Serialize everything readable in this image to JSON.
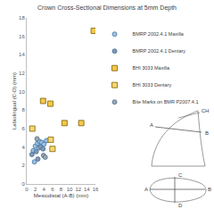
{
  "chart_data": {
    "type": "scatter",
    "title": "Crown Cross-Sectional Dimensions at 5mm Depth",
    "x_label": "Mesiodistal (A-B) (mm)",
    "y_label": "Labiolingual (C-D) (mm)",
    "xlim": [
      0,
      16
    ],
    "xticks": [
      0,
      2,
      4,
      6,
      8,
      10,
      12,
      14,
      16
    ],
    "ylim": [
      0,
      18
    ],
    "yticks": [
      0,
      2,
      4,
      6,
      8,
      10,
      12,
      14,
      16,
      18
    ],
    "grid": false,
    "legend": "right",
    "series": [
      {
        "name": "BMRP 2002.4.1 Maxilla",
        "color": "#9dc3e6",
        "marker": "circle",
        "x": [
          1.5,
          2.0,
          2.5,
          3.0,
          3.5,
          4.0,
          2.8,
          1.8,
          4.6
        ],
        "values": [
          3.6,
          4.1,
          4.4,
          4.6,
          4.5,
          4.3,
          3.9,
          2.4,
          4.7
        ]
      },
      {
        "name": "BMRP 2002.4.1 Dentary",
        "color": "#8497b0",
        "marker": "circle",
        "x": [
          1.2,
          2.2,
          3.2,
          2.6,
          3.8
        ],
        "values": [
          3.2,
          3.5,
          4.0,
          2.7,
          3.8
        ]
      },
      {
        "name": "BHI 3033 Maxilla",
        "color": "#f2c84b",
        "marker": "square",
        "x": [
          15.6,
          12.7,
          8.8,
          5.5,
          3.8
        ],
        "values": [
          16.6,
          6.6,
          6.6,
          8.7,
          9.0
        ]
      },
      {
        "name": "BHI 3033 Dentary",
        "color": "#f7d774",
        "marker": "square",
        "x": [
          1.3,
          5.6,
          6.0
        ],
        "values": [
          6.0,
          4.8,
          3.8
        ]
      },
      {
        "name": "Bite Marks on BMR P2007.4.1",
        "color": "#a5a5a5",
        "marker": "circle",
        "x": [
          2.4,
          3.9,
          4.3
        ],
        "values": [
          4.9,
          3.1,
          2.9
        ]
      }
    ]
  },
  "diagram": {
    "crown_labels": [
      "A",
      "CH",
      "B"
    ],
    "section_labels": [
      "A",
      "B",
      "C",
      "D"
    ]
  }
}
